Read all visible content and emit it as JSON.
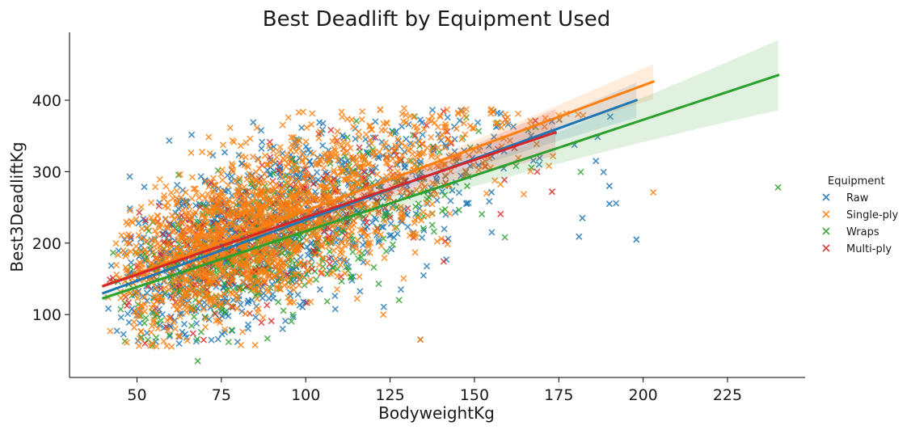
{
  "chart_data": {
    "type": "scatter",
    "title": "Best Deadlift by Equipment Used",
    "xlabel": "BodyweightKg",
    "ylabel": "Best3DeadliftKg",
    "xlim": [
      30,
      248
    ],
    "ylim": [
      12,
      495
    ],
    "xticks": [
      50,
      75,
      100,
      125,
      150,
      175,
      200,
      225
    ],
    "yticks": [
      100,
      200,
      300,
      400
    ],
    "legend": {
      "title": "Equipment",
      "placement": "right"
    },
    "grid": false,
    "marker": "x",
    "series": [
      {
        "name": "Raw",
        "color": "#1f77b4",
        "regression": {
          "x": [
            40,
            198
          ],
          "y": [
            130,
            400
          ]
        }
      },
      {
        "name": "Single-ply",
        "color": "#ff7f0e",
        "regression": {
          "x": [
            40,
            203
          ],
          "y": [
            140,
            426
          ]
        }
      },
      {
        "name": "Wraps",
        "color": "#2ca02c",
        "regression": {
          "x": [
            40,
            240
          ],
          "y": [
            123,
            435
          ]
        }
      },
      {
        "name": "Multi-ply",
        "color": "#d62728",
        "regression": {
          "x": [
            40,
            174
          ],
          "y": [
            140,
            355
          ]
        }
      }
    ],
    "outliers": [
      {
        "series": "Raw",
        "x": 198,
        "y": 205
      },
      {
        "series": "Raw",
        "x": 190,
        "y": 255
      },
      {
        "series": "Raw",
        "x": 190,
        "y": 280
      },
      {
        "series": "Raw",
        "x": 181,
        "y": 209
      },
      {
        "series": "Raw",
        "x": 186,
        "y": 315
      },
      {
        "series": "Raw",
        "x": 182,
        "y": 235
      },
      {
        "series": "Raw",
        "x": 134,
        "y": 65
      },
      {
        "series": "Single-ply",
        "x": 203,
        "y": 271
      },
      {
        "series": "Single-ply",
        "x": 134,
        "y": 65
      },
      {
        "series": "Single-ply",
        "x": 123,
        "y": 100
      },
      {
        "series": "Wraps",
        "x": 240,
        "y": 278
      },
      {
        "series": "Wraps",
        "x": 68,
        "y": 35
      },
      {
        "series": "Multi-ply",
        "x": 173,
        "y": 272
      }
    ]
  }
}
